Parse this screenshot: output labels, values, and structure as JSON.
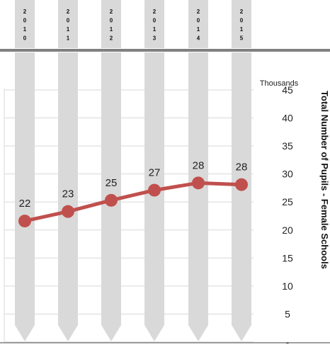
{
  "chart_data": {
    "type": "line",
    "categories": [
      "2010",
      "2011",
      "2012",
      "2013",
      "2014",
      "2015"
    ],
    "values": [
      22,
      23,
      25,
      27,
      28,
      28
    ],
    "plotted_values": [
      21.6,
      23.3,
      25.3,
      27.1,
      28.4,
      28.1
    ],
    "data_labels": [
      "22",
      "23",
      "25",
      "27",
      "28",
      "28"
    ],
    "ylabel": "Total Number of Pupils - Female Schools",
    "y_unit_label": "Thousands",
    "ylim": [
      0,
      45
    ],
    "y_ticks": [
      {
        "value": 0,
        "label": "-"
      },
      {
        "value": 5,
        "label": "5"
      },
      {
        "value": 10,
        "label": "10"
      },
      {
        "value": 15,
        "label": "15"
      },
      {
        "value": 20,
        "label": "20"
      },
      {
        "value": 25,
        "label": "25"
      },
      {
        "value": 30,
        "label": "30"
      },
      {
        "value": 35,
        "label": "35"
      },
      {
        "value": 40,
        "label": "40"
      },
      {
        "value": 45,
        "label": "45"
      }
    ],
    "grid": true,
    "y_axis_position": "right",
    "x_labels_position": "top",
    "colors": {
      "line": "#c0504d",
      "band": "#d9d9d9",
      "divider": "#808080",
      "grid": "#d9d9d9",
      "text": "#222222"
    }
  }
}
